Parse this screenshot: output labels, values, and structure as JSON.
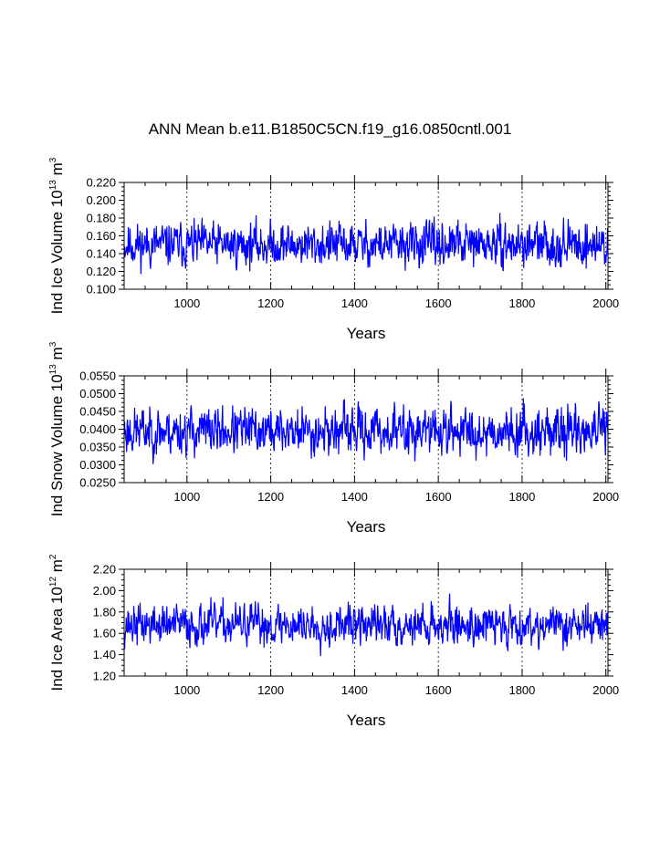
{
  "title": "ANN Mean b.e11.B1850C5CN.f19_g16.0850cntl.001",
  "chart_data": [
    {
      "type": "line",
      "title": "ANN Mean b.e11.B1850C5CN.f19_g16.0850cntl.001",
      "ylabel_main": "Ind Ice Volume 10",
      "ylabel_exp": "13",
      "ylabel_unit": "m",
      "ylabel_unit_exp": "3",
      "xlabel": "Years",
      "xlim": [
        850,
        2005
      ],
      "ylim": [
        0.1,
        0.22
      ],
      "xticks": [
        1000,
        1200,
        1400,
        1600,
        1800,
        2000
      ],
      "xtick_labels": [
        "1000",
        "1200",
        "1400",
        "1600",
        "1800",
        "2000"
      ],
      "yticks": [
        0.1,
        0.12,
        0.14,
        0.16,
        0.18,
        0.2,
        0.22
      ],
      "ytick_labels": [
        "0.100",
        "0.120",
        "0.140",
        "0.160",
        "0.180",
        "0.200",
        "0.220"
      ],
      "vlines": [
        1000,
        1200,
        1400,
        1600,
        1800,
        2000
      ],
      "series": [
        {
          "name": "Ind Ice Volume",
          "color": "#0000ff",
          "mean": 0.15,
          "amp": 0.014,
          "seed": 11
        }
      ]
    },
    {
      "type": "line",
      "ylabel_main": "Ind Snow Volume 10",
      "ylabel_exp": "13",
      "ylabel_unit": "m",
      "ylabel_unit_exp": "3",
      "xlabel": "Years",
      "xlim": [
        850,
        2005
      ],
      "ylim": [
        0.025,
        0.055
      ],
      "xticks": [
        1000,
        1200,
        1400,
        1600,
        1800,
        2000
      ],
      "xtick_labels": [
        "1000",
        "1200",
        "1400",
        "1600",
        "1800",
        "2000"
      ],
      "yticks": [
        0.025,
        0.03,
        0.035,
        0.04,
        0.045,
        0.05,
        0.055
      ],
      "ytick_labels": [
        "0.0250",
        "0.0300",
        "0.0350",
        "0.0400",
        "0.0450",
        "0.0500",
        "0.0550"
      ],
      "vlines": [
        1000,
        1200,
        1400,
        1600,
        1800,
        2000
      ],
      "series": [
        {
          "name": "Ind Snow Volume",
          "color": "#0000ff",
          "mean": 0.0395,
          "amp": 0.0038,
          "seed": 23
        }
      ]
    },
    {
      "type": "line",
      "ylabel_main": "Ind Ice Area 10",
      "ylabel_exp": "12",
      "ylabel_unit": "m",
      "ylabel_unit_exp": "2",
      "xlabel": "Years",
      "xlim": [
        850,
        2005
      ],
      "ylim": [
        1.2,
        2.2
      ],
      "xticks": [
        1000,
        1200,
        1400,
        1600,
        1800,
        2000
      ],
      "xtick_labels": [
        "1000",
        "1200",
        "1400",
        "1600",
        "1800",
        "2000"
      ],
      "yticks": [
        1.2,
        1.4,
        1.6,
        1.8,
        2.0,
        2.2
      ],
      "ytick_labels": [
        "1.20",
        "1.40",
        "1.60",
        "1.80",
        "2.00",
        "2.20"
      ],
      "vlines": [
        1000,
        1200,
        1400,
        1600,
        1800,
        2000
      ],
      "series": [
        {
          "name": "Ind Ice Area",
          "color": "#0000ff",
          "mean": 1.68,
          "amp": 0.11,
          "seed": 37
        }
      ]
    }
  ]
}
